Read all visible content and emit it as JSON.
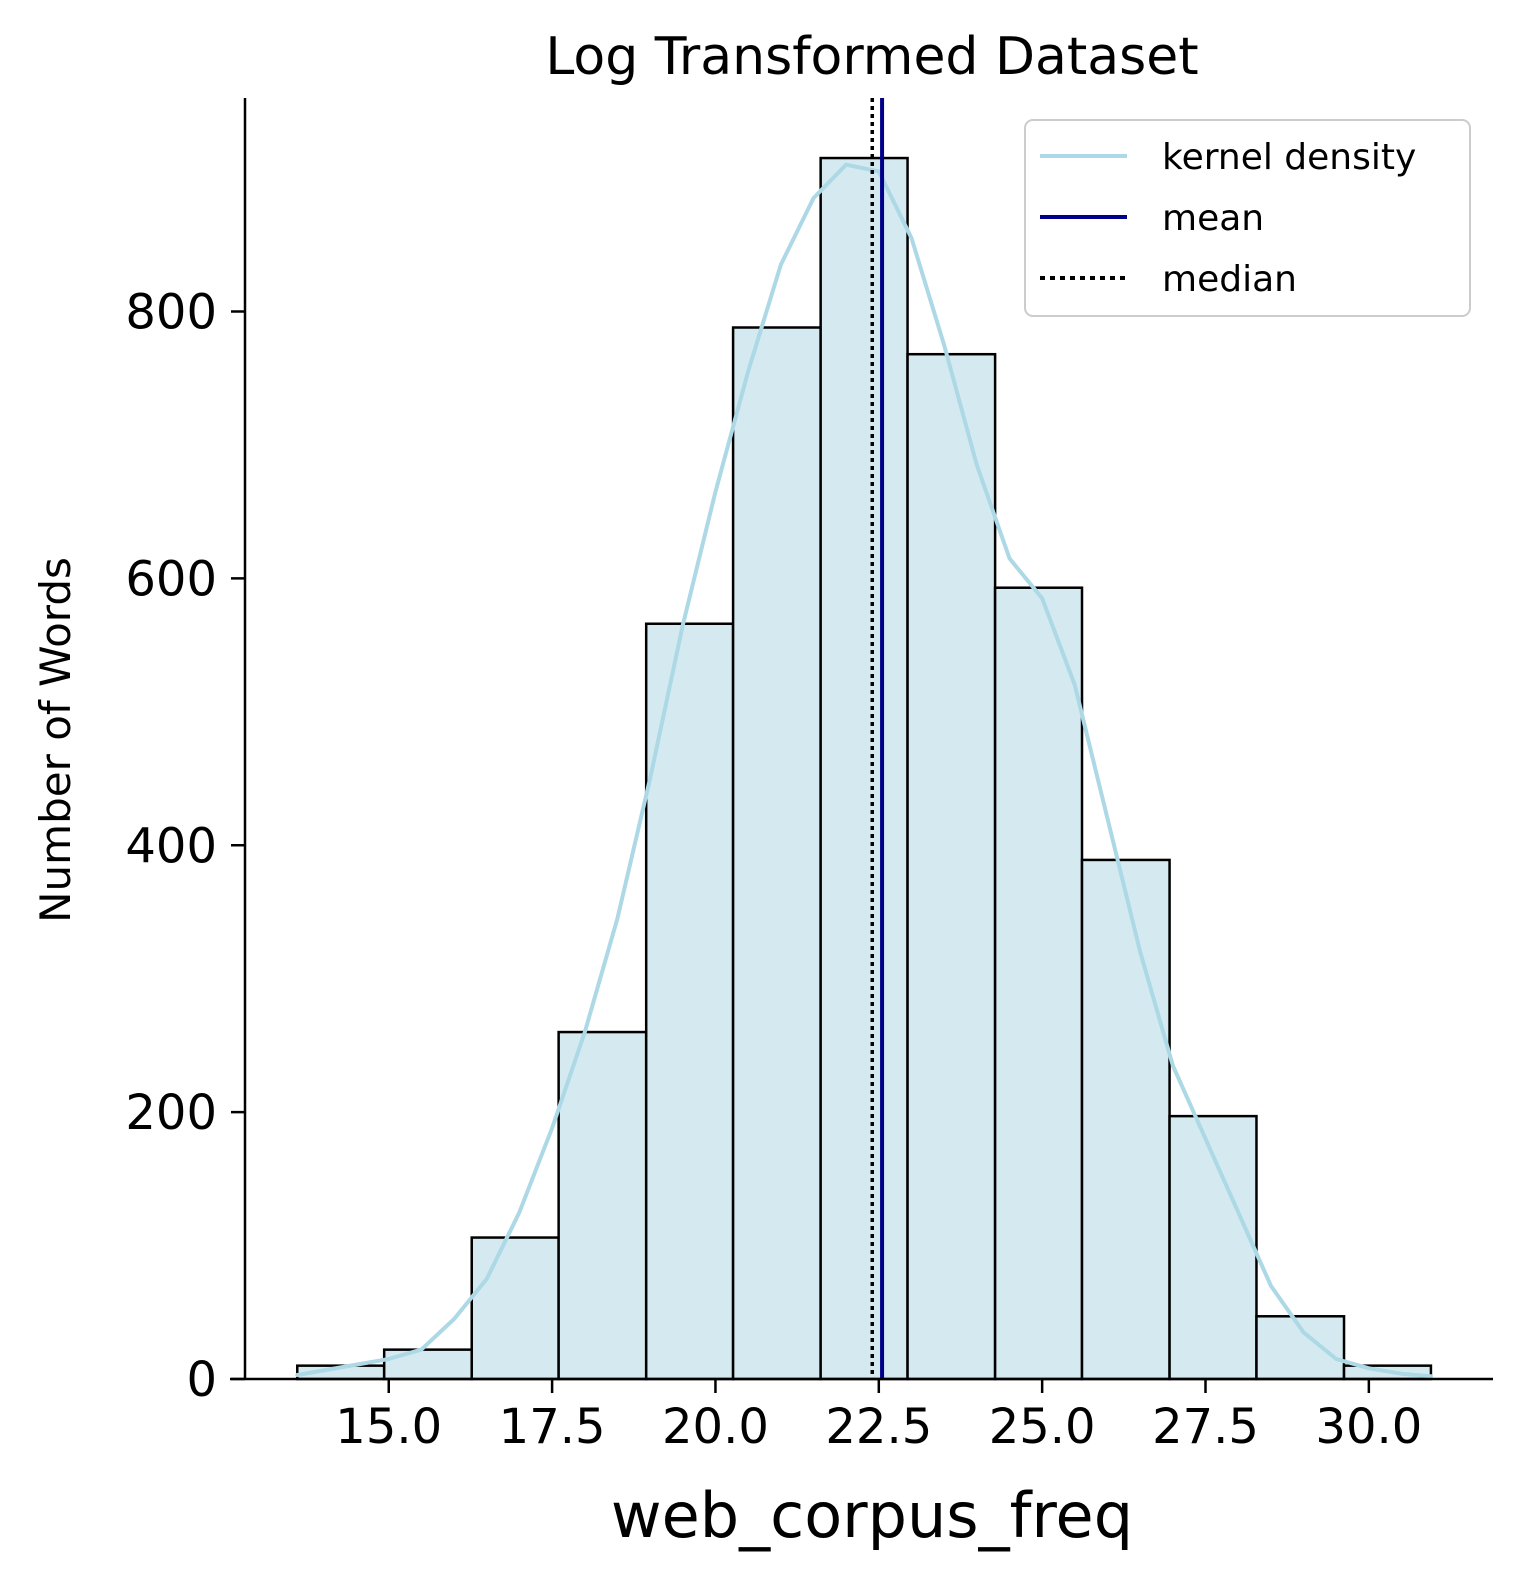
{
  "chart_data": {
    "type": "bar",
    "title": "Log Transformed Dataset",
    "xlabel": "web_corpus_freq",
    "ylabel": "Number of Words",
    "xlim": [
      12.8,
      31.9
    ],
    "ylim": [
      0,
      960
    ],
    "xticks": [
      "15.0",
      "17.5",
      "20.0",
      "22.5",
      "25.0",
      "27.5",
      "30.0"
    ],
    "xtick_values": [
      15.0,
      17.5,
      20.0,
      22.5,
      25.0,
      27.5,
      30.0
    ],
    "yticks": [
      "0",
      "200",
      "400",
      "600",
      "800"
    ],
    "ytick_values": [
      0,
      200,
      400,
      600,
      800
    ],
    "bin_edges": [
      13.6,
      14.93,
      16.27,
      17.6,
      18.94,
      20.27,
      21.61,
      22.94,
      24.28,
      25.61,
      26.95,
      28.28,
      29.62,
      30.95
    ],
    "values": [
      10,
      22,
      106,
      260,
      566,
      788,
      915,
      768,
      593,
      389,
      197,
      47,
      10
    ],
    "series": [
      {
        "name": "kernel density",
        "color": "#add8e6",
        "x": [
          13.6,
          14.3,
          15.0,
          15.5,
          16.0,
          16.5,
          17.0,
          17.5,
          18.0,
          18.5,
          19.0,
          19.5,
          20.0,
          20.5,
          21.0,
          21.5,
          22.0,
          22.5,
          23.0,
          23.5,
          24.0,
          24.5,
          25.0,
          25.5,
          26.0,
          26.5,
          27.0,
          27.5,
          28.0,
          28.5,
          29.0,
          29.5,
          30.0,
          30.5,
          30.95
        ],
        "y": [
          3,
          9,
          15,
          22,
          45,
          75,
          125,
          188,
          260,
          345,
          450,
          565,
          665,
          755,
          835,
          885,
          910,
          905,
          855,
          775,
          685,
          615,
          585,
          520,
          420,
          320,
          235,
          180,
          125,
          70,
          35,
          15,
          8,
          4,
          2
        ]
      }
    ],
    "mean": 22.55,
    "median": 22.4,
    "bar_fill": "#d4eaf0",
    "bar_edge": "#000000",
    "mean_color": "#00008b",
    "median_color": "#000000",
    "legend": {
      "placement": "top-right",
      "entries": [
        "kernel density",
        "mean",
        "median"
      ]
    },
    "grid": false
  }
}
